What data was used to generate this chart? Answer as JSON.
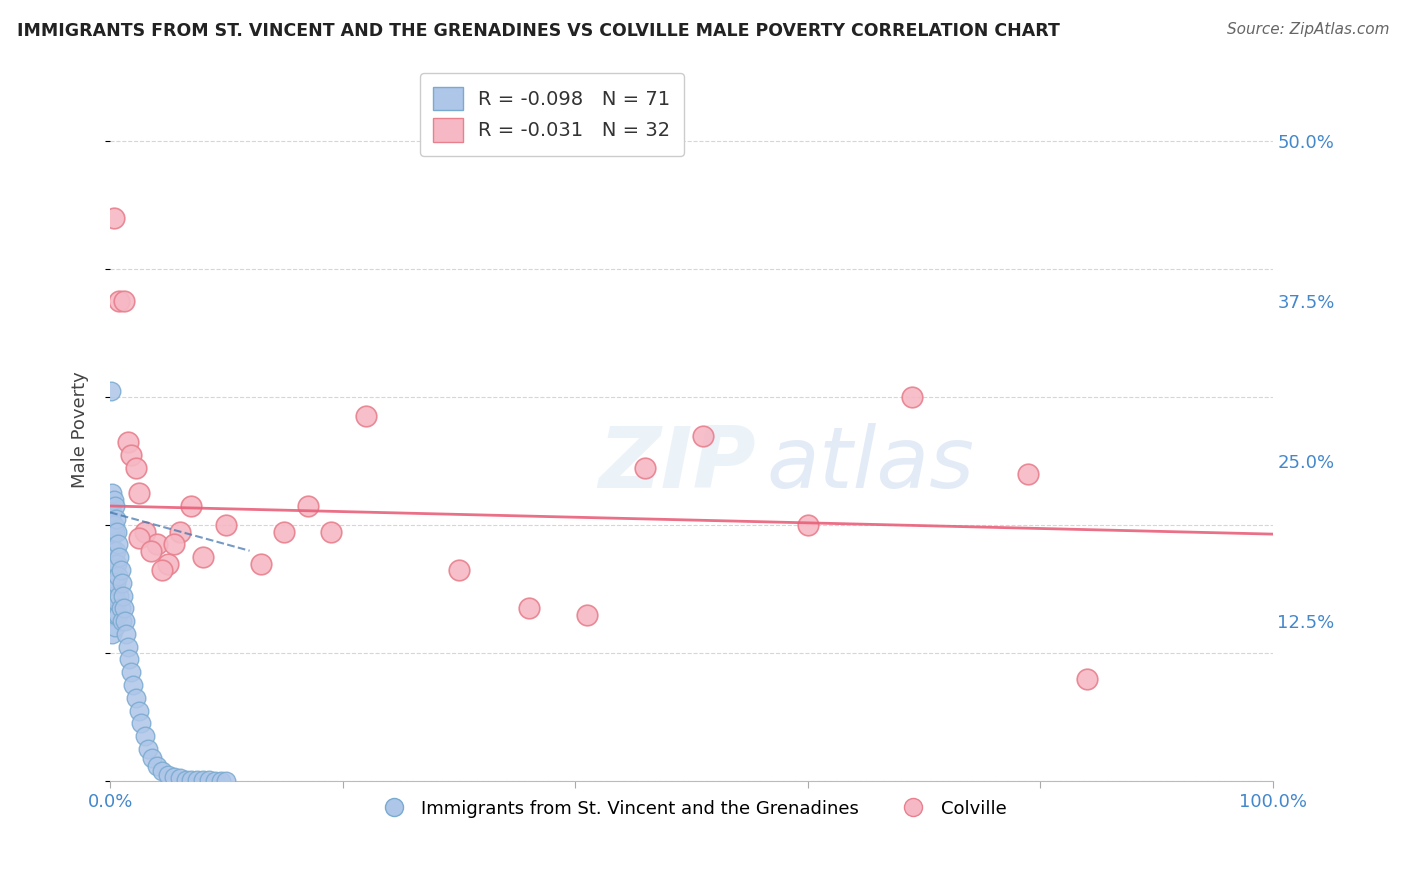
{
  "title": "IMMIGRANTS FROM ST. VINCENT AND THE GRENADINES VS COLVILLE MALE POVERTY CORRELATION CHART",
  "source": "Source: ZipAtlas.com",
  "ylabel": "Male Poverty",
  "yticks": [
    "50.0%",
    "37.5%",
    "25.0%",
    "12.5%"
  ],
  "ytick_vals": [
    0.5,
    0.375,
    0.25,
    0.125
  ],
  "xlim": [
    0.0,
    1.0
  ],
  "ylim": [
    0.0,
    0.55
  ],
  "legend_r_blue": "-0.098",
  "legend_n_blue": "71",
  "legend_r_pink": "-0.031",
  "legend_n_pink": "32",
  "blue_color": "#aec6e8",
  "pink_color": "#f5b8c4",
  "blue_edge": "#7aaad0",
  "pink_edge": "#e8808e",
  "trendline_blue_color": "#3a6faa",
  "trendline_pink_color": "#e8607a",
  "grid_color": "#cccccc",
  "blue_scatter_x": [
    0.001,
    0.001,
    0.001,
    0.001,
    0.001,
    0.001,
    0.001,
    0.001,
    0.001,
    0.002,
    0.002,
    0.002,
    0.002,
    0.002,
    0.002,
    0.002,
    0.002,
    0.003,
    0.003,
    0.003,
    0.003,
    0.003,
    0.004,
    0.004,
    0.004,
    0.004,
    0.004,
    0.005,
    0.005,
    0.005,
    0.005,
    0.006,
    0.006,
    0.006,
    0.007,
    0.007,
    0.007,
    0.008,
    0.008,
    0.009,
    0.009,
    0.01,
    0.01,
    0.011,
    0.012,
    0.013,
    0.014,
    0.015,
    0.016,
    0.018,
    0.02,
    0.022,
    0.025,
    0.027,
    0.03,
    0.033,
    0.036,
    0.04,
    0.045,
    0.05,
    0.055,
    0.06,
    0.065,
    0.07,
    0.075,
    0.08,
    0.085,
    0.09,
    0.095,
    0.1,
    0.001
  ],
  "blue_scatter_y": [
    0.215,
    0.205,
    0.195,
    0.185,
    0.175,
    0.165,
    0.155,
    0.145,
    0.135,
    0.225,
    0.21,
    0.195,
    0.175,
    0.16,
    0.145,
    0.13,
    0.115,
    0.22,
    0.2,
    0.18,
    0.155,
    0.13,
    0.215,
    0.195,
    0.17,
    0.145,
    0.12,
    0.205,
    0.18,
    0.155,
    0.13,
    0.195,
    0.17,
    0.14,
    0.185,
    0.16,
    0.13,
    0.175,
    0.145,
    0.165,
    0.135,
    0.155,
    0.125,
    0.145,
    0.135,
    0.125,
    0.115,
    0.105,
    0.095,
    0.085,
    0.075,
    0.065,
    0.055,
    0.045,
    0.035,
    0.025,
    0.018,
    0.012,
    0.008,
    0.005,
    0.003,
    0.002,
    0.001,
    0.001,
    0.001,
    0.001,
    0.001,
    0.0,
    0.0,
    0.0,
    0.305
  ],
  "pink_scatter_x": [
    0.003,
    0.008,
    0.012,
    0.015,
    0.018,
    0.022,
    0.025,
    0.03,
    0.04,
    0.05,
    0.06,
    0.08,
    0.1,
    0.13,
    0.15,
    0.17,
    0.19,
    0.22,
    0.3,
    0.36,
    0.41,
    0.46,
    0.51,
    0.6,
    0.69,
    0.79,
    0.84,
    0.025,
    0.035,
    0.045,
    0.055,
    0.07
  ],
  "pink_scatter_y": [
    0.44,
    0.375,
    0.375,
    0.265,
    0.255,
    0.245,
    0.225,
    0.195,
    0.185,
    0.17,
    0.195,
    0.175,
    0.2,
    0.17,
    0.195,
    0.215,
    0.195,
    0.285,
    0.165,
    0.135,
    0.13,
    0.245,
    0.27,
    0.2,
    0.3,
    0.24,
    0.08,
    0.19,
    0.18,
    0.165,
    0.185,
    0.215
  ],
  "background_color": "#ffffff",
  "watermark_text": "ZIP",
  "watermark_text2": "atlas"
}
